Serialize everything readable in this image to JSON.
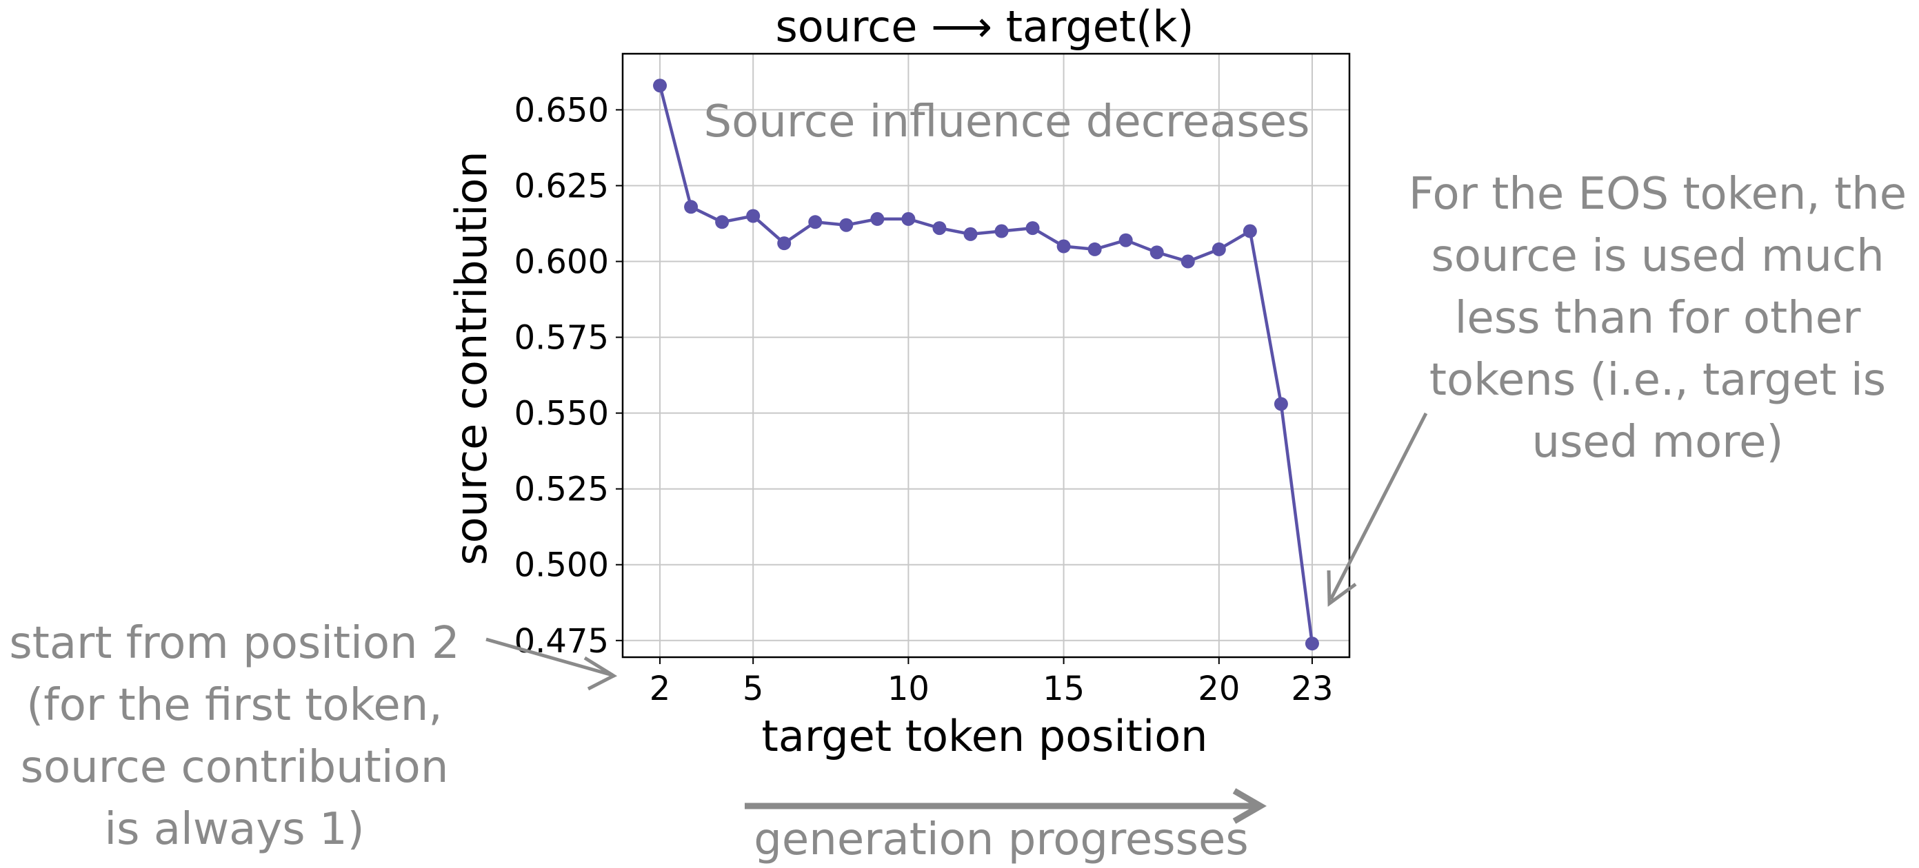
{
  "chart_data": {
    "type": "line",
    "title": "source ⟶ target(k)",
    "xlabel": "target token position",
    "ylabel": "source contribution",
    "x_ticks": [
      "2",
      "5",
      "10",
      "15",
      "20",
      "23"
    ],
    "y_ticks": [
      "0.650",
      "0.625",
      "0.600",
      "0.575",
      "0.550",
      "0.525",
      "0.500",
      "0.475"
    ],
    "xlim": [
      0.8,
      24.2
    ],
    "ylim": [
      0.4695,
      0.6685
    ],
    "grid": true,
    "series": [
      {
        "color": "#5a52a8",
        "x": [
          2,
          3,
          4,
          5,
          6,
          7,
          8,
          9,
          10,
          11,
          12,
          13,
          14,
          15,
          16,
          17,
          18,
          19,
          20,
          21,
          22,
          23
        ],
        "y": [
          0.658,
          0.618,
          0.613,
          0.615,
          0.606,
          0.613,
          0.612,
          0.614,
          0.614,
          0.611,
          0.609,
          0.61,
          0.611,
          0.605,
          0.604,
          0.607,
          0.603,
          0.6,
          0.604,
          0.61,
          0.553,
          0.474
        ]
      }
    ],
    "annotations": {
      "inside": "Source influence decreases",
      "eos": [
        "For the EOS token, the",
        "source is used much",
        "less than for other",
        "tokens (i.e., target is",
        "used  more)"
      ],
      "start": [
        "start from position 2",
        "(for the first token,",
        "source contribution",
        "is always 1)"
      ],
      "generation": "generation progresses"
    }
  }
}
